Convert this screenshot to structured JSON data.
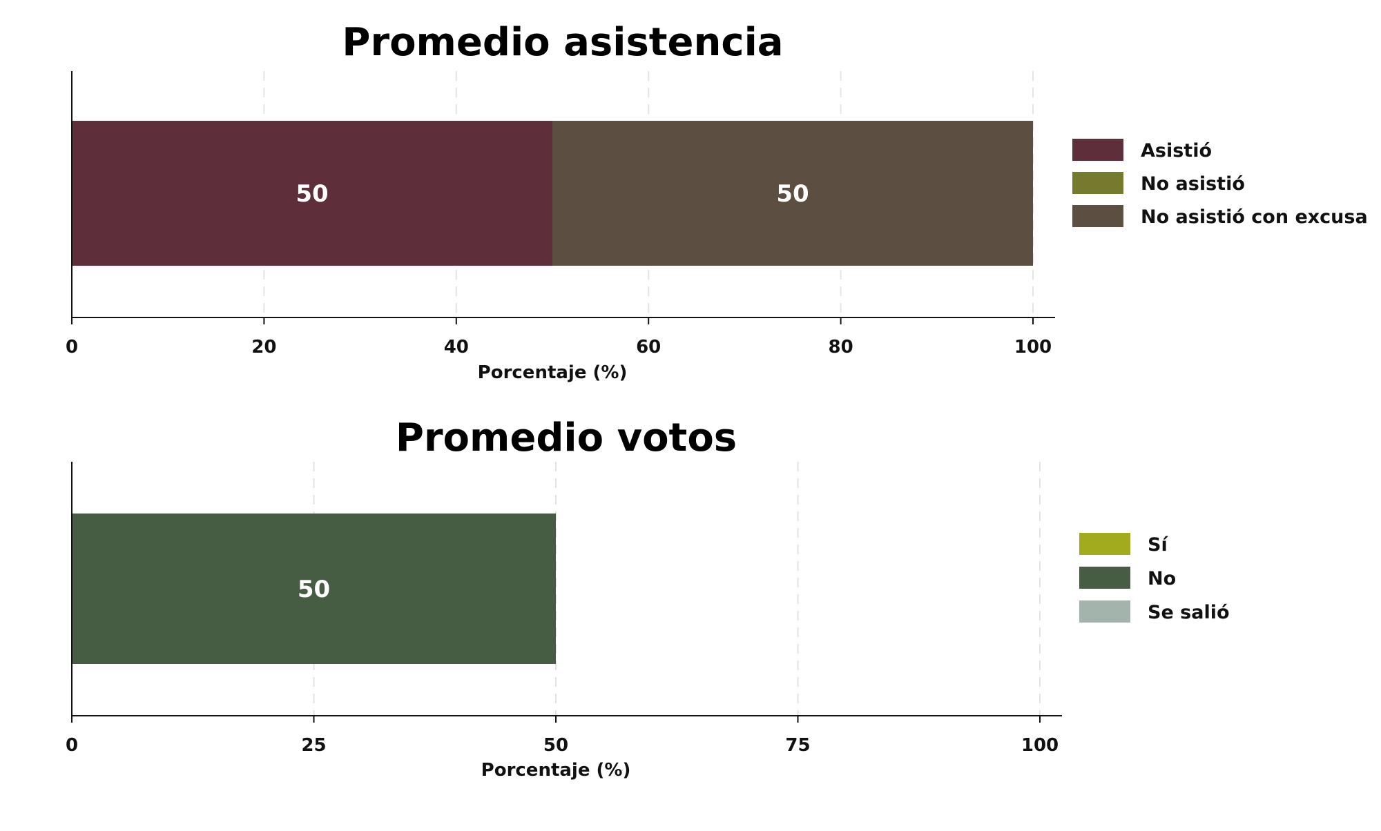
{
  "chart_data": [
    {
      "type": "bar",
      "orientation": "horizontal",
      "stacked": true,
      "title": "Promedio asistencia",
      "xlabel": "Porcentaje (%)",
      "ylabel": "",
      "xlim": [
        0,
        100
      ],
      "xticks": [
        "0",
        "20",
        "40",
        "60",
        "80",
        "100"
      ],
      "xtick_values": [
        0,
        20,
        40,
        60,
        80,
        100
      ],
      "grid": "vertical-dashed",
      "legend_position": "right",
      "series": [
        {
          "name": "Asistió",
          "color": "#5f2e3b",
          "value": 50,
          "label": "50"
        },
        {
          "name": "No asistió",
          "color": "#757a2e",
          "value": 0,
          "label": ""
        },
        {
          "name": "No asistió con excusa",
          "color": "#5c4e40",
          "value": 50,
          "label": "50"
        }
      ]
    },
    {
      "type": "bar",
      "orientation": "horizontal",
      "stacked": true,
      "title": "Promedio votos",
      "xlabel": "Porcentaje (%)",
      "ylabel": "",
      "xlim": [
        0,
        100
      ],
      "xticks": [
        "0",
        "25",
        "50",
        "75",
        "100"
      ],
      "xtick_values": [
        0,
        25,
        50,
        75,
        100
      ],
      "grid": "vertical-dashed",
      "legend_position": "right",
      "series": [
        {
          "name": "Sí",
          "color": "#a2ab1e",
          "value": 0,
          "label": ""
        },
        {
          "name": "No",
          "color": "#465c43",
          "value": 50,
          "label": "50"
        },
        {
          "name": "Se salió",
          "color": "#a2b4ab",
          "value": 0,
          "label": ""
        }
      ]
    }
  ]
}
